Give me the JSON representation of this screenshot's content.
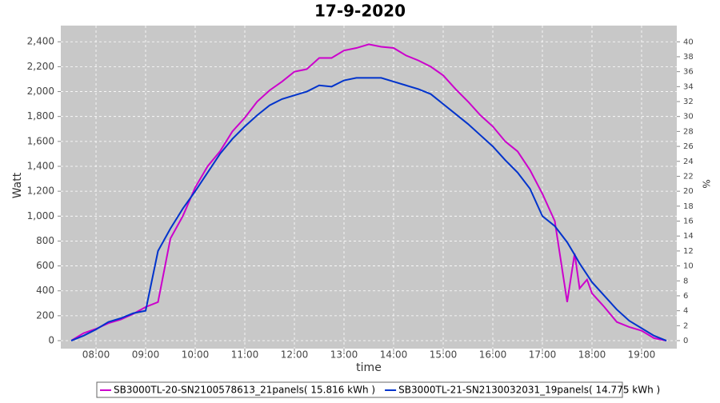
{
  "chart_data": {
    "type": "line",
    "title": "17-9-2020",
    "x_label": "time",
    "y_label": "Watt",
    "y2_label": "%",
    "x": [
      7.5,
      7.75,
      8.0,
      8.25,
      8.5,
      8.75,
      9.0,
      9.25,
      9.5,
      9.75,
      10.0,
      10.25,
      10.5,
      10.75,
      11.0,
      11.25,
      11.5,
      11.75,
      12.0,
      12.25,
      12.5,
      12.75,
      13.0,
      13.25,
      13.5,
      13.75,
      14.0,
      14.25,
      14.5,
      14.75,
      15.0,
      15.25,
      15.5,
      15.75,
      16.0,
      16.25,
      16.5,
      16.75,
      17.0,
      17.25,
      17.5,
      17.65,
      17.75,
      17.9,
      18.0,
      18.25,
      18.5,
      18.75,
      19.0,
      19.25,
      19.5
    ],
    "series": [
      {
        "name": "SB3000TL-20-SN2100578613_21panels( 15.816 kWh )",
        "color": "#cc00cc",
        "values": [
          0,
          60,
          95,
          140,
          170,
          215,
          270,
          310,
          820,
          1000,
          1230,
          1400,
          1520,
          1680,
          1790,
          1920,
          2010,
          2080,
          2160,
          2180,
          2270,
          2270,
          2330,
          2350,
          2380,
          2360,
          2350,
          2290,
          2250,
          2200,
          2130,
          2020,
          1920,
          1810,
          1720,
          1600,
          1520,
          1370,
          1180,
          960,
          310,
          700,
          420,
          490,
          380,
          270,
          150,
          110,
          80,
          20,
          0
        ]
      },
      {
        "name": "SB3000TL-21-SN2130032031_19panels( 14.775 kWh )",
        "color": "#0033cc",
        "values": [
          0,
          40,
          90,
          150,
          180,
          220,
          240,
          720,
          900,
          1060,
          1200,
          1350,
          1500,
          1620,
          1720,
          1810,
          1890,
          1940,
          1970,
          2000,
          2050,
          2040,
          2090,
          2110,
          2110,
          2110,
          2080,
          2050,
          2020,
          1980,
          1900,
          1820,
          1740,
          1650,
          1560,
          1450,
          1350,
          1220,
          1000,
          920,
          790,
          690,
          620,
          530,
          470,
          360,
          250,
          160,
          100,
          40,
          0
        ]
      }
    ],
    "xlim": [
      7.29,
      19.71
    ],
    "xticks": [
      {
        "value": 8,
        "label": "08:00"
      },
      {
        "value": 9,
        "label": "09:00"
      },
      {
        "value": 10,
        "label": "10:00"
      },
      {
        "value": 11,
        "label": "11:00"
      },
      {
        "value": 12,
        "label": "12:00"
      },
      {
        "value": 13,
        "label": "13:00"
      },
      {
        "value": 14,
        "label": "14:00"
      },
      {
        "value": 15,
        "label": "15:00"
      },
      {
        "value": 16,
        "label": "16:00"
      },
      {
        "value": 17,
        "label": "17:00"
      },
      {
        "value": 18,
        "label": "18:00"
      },
      {
        "value": 19,
        "label": "19:00"
      }
    ],
    "ylim": [
      -64,
      2530
    ],
    "yticks": [
      0,
      {
        "value": 200,
        "label": "200"
      },
      {
        "value": 400,
        "label": "400"
      },
      {
        "value": 600,
        "label": "600"
      },
      {
        "value": 800,
        "label": "800"
      },
      {
        "value": 1000,
        "label": "1,000"
      },
      {
        "value": 1200,
        "label": "1,200"
      },
      {
        "value": 1400,
        "label": "1,400"
      },
      {
        "value": 1600,
        "label": "1,600"
      },
      {
        "value": 1800,
        "label": "1,800"
      },
      {
        "value": 2000,
        "label": "2,000"
      },
      {
        "value": 2200,
        "label": "2,200"
      },
      {
        "value": 2400,
        "label": "2,400"
      }
    ],
    "y2lim": [
      -1.07,
      42.17
    ],
    "y2ticks": [
      0,
      2,
      4,
      6,
      8,
      10,
      12,
      14,
      16,
      18,
      20,
      22,
      24,
      26,
      28,
      30,
      32,
      34,
      36,
      38,
      40
    ],
    "grid": true
  }
}
